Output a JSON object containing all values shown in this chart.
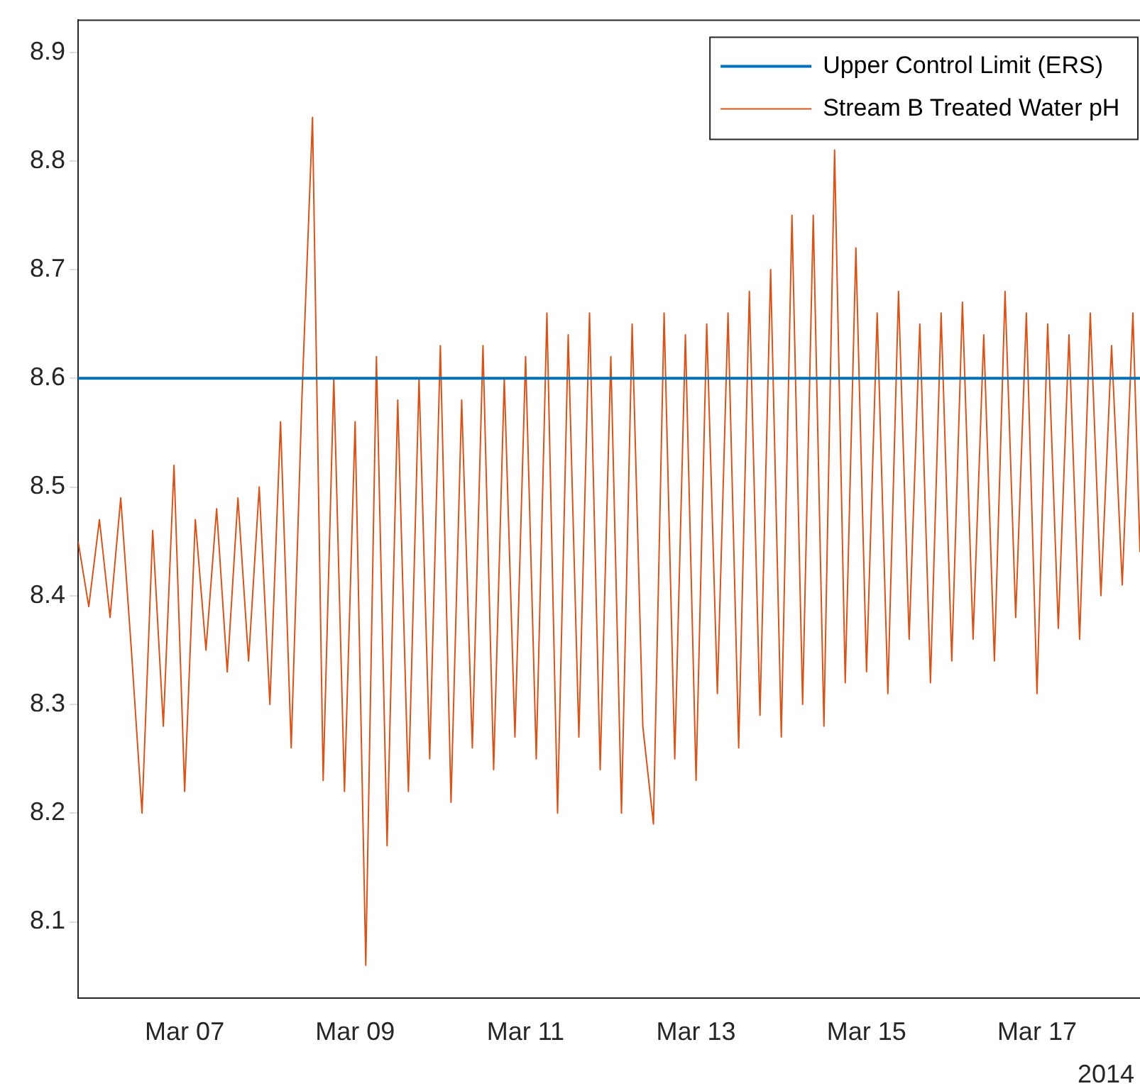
{
  "chart_data": {
    "type": "line",
    "series": [
      {
        "name": "Upper Control Limit (ERS)",
        "color": "#0072bd",
        "x": [
          "2014-03-05T18:00",
          "2014-03-18T05:00"
        ],
        "values": [
          8.6,
          8.6
        ]
      },
      {
        "name": "Stream B Treated Water pH",
        "color": "#d95319",
        "x": [
          "2014-03-05T18:00",
          "2014-03-05T21:00",
          "2014-03-06T00:00",
          "2014-03-06T03:00",
          "2014-03-06T06:00",
          "2014-03-06T09:00",
          "2014-03-06T12:00",
          "2014-03-06T15:00",
          "2014-03-06T18:00",
          "2014-03-06T21:00",
          "2014-03-07T00:00",
          "2014-03-07T03:00",
          "2014-03-07T06:00",
          "2014-03-07T09:00",
          "2014-03-07T12:00",
          "2014-03-07T15:00",
          "2014-03-07T18:00",
          "2014-03-07T21:00",
          "2014-03-08T00:00",
          "2014-03-08T03:00",
          "2014-03-08T06:00",
          "2014-03-08T09:00",
          "2014-03-08T12:00",
          "2014-03-08T15:00",
          "2014-03-08T18:00",
          "2014-03-08T21:00",
          "2014-03-09T00:00",
          "2014-03-09T03:00",
          "2014-03-09T06:00",
          "2014-03-09T09:00",
          "2014-03-09T12:00",
          "2014-03-09T15:00",
          "2014-03-09T18:00",
          "2014-03-09T21:00",
          "2014-03-10T00:00",
          "2014-03-10T03:00",
          "2014-03-10T06:00",
          "2014-03-10T09:00",
          "2014-03-10T12:00",
          "2014-03-10T15:00",
          "2014-03-10T18:00",
          "2014-03-10T21:00",
          "2014-03-11T00:00",
          "2014-03-11T03:00",
          "2014-03-11T06:00",
          "2014-03-11T09:00",
          "2014-03-11T12:00",
          "2014-03-11T15:00",
          "2014-03-11T18:00",
          "2014-03-11T21:00",
          "2014-03-12T00:00",
          "2014-03-12T03:00",
          "2014-03-12T06:00",
          "2014-03-12T09:00",
          "2014-03-12T12:00",
          "2014-03-12T15:00",
          "2014-03-12T18:00",
          "2014-03-12T21:00",
          "2014-03-13T00:00",
          "2014-03-13T03:00",
          "2014-03-13T06:00",
          "2014-03-13T09:00",
          "2014-03-13T12:00",
          "2014-03-13T15:00",
          "2014-03-13T18:00",
          "2014-03-13T21:00",
          "2014-03-14T00:00",
          "2014-03-14T03:00",
          "2014-03-14T06:00",
          "2014-03-14T09:00",
          "2014-03-14T12:00",
          "2014-03-14T15:00",
          "2014-03-14T18:00",
          "2014-03-14T21:00",
          "2014-03-15T00:00",
          "2014-03-15T03:00",
          "2014-03-15T06:00",
          "2014-03-15T09:00",
          "2014-03-15T12:00",
          "2014-03-15T15:00",
          "2014-03-15T18:00",
          "2014-03-15T21:00",
          "2014-03-16T00:00",
          "2014-03-16T03:00",
          "2014-03-16T06:00",
          "2014-03-16T09:00",
          "2014-03-16T12:00",
          "2014-03-16T15:00",
          "2014-03-16T18:00",
          "2014-03-16T21:00",
          "2014-03-17T00:00",
          "2014-03-17T03:00",
          "2014-03-17T06:00",
          "2014-03-17T09:00",
          "2014-03-17T12:00",
          "2014-03-17T15:00",
          "2014-03-17T18:00",
          "2014-03-17T21:00",
          "2014-03-18T00:00",
          "2014-03-18T03:00",
          "2014-03-18T05:00"
        ],
        "values": [
          8.45,
          8.39,
          8.47,
          8.38,
          8.49,
          8.35,
          8.2,
          8.46,
          8.28,
          8.52,
          8.22,
          8.47,
          8.35,
          8.48,
          8.33,
          8.49,
          8.34,
          8.5,
          8.3,
          8.56,
          8.26,
          8.58,
          8.84,
          8.23,
          8.6,
          8.22,
          8.56,
          8.06,
          8.62,
          8.17,
          8.58,
          8.22,
          8.6,
          8.25,
          8.63,
          8.21,
          8.58,
          8.26,
          8.63,
          8.24,
          8.6,
          8.27,
          8.62,
          8.25,
          8.66,
          8.2,
          8.64,
          8.27,
          8.66,
          8.24,
          8.62,
          8.2,
          8.65,
          8.28,
          8.19,
          8.66,
          8.25,
          8.64,
          8.23,
          8.65,
          8.31,
          8.66,
          8.26,
          8.68,
          8.29,
          8.7,
          8.27,
          8.75,
          8.3,
          8.75,
          8.28,
          8.81,
          8.32,
          8.72,
          8.33,
          8.66,
          8.31,
          8.68,
          8.36,
          8.65,
          8.32,
          8.66,
          8.34,
          8.67,
          8.36,
          8.64,
          8.34,
          8.68,
          8.38,
          8.66,
          8.31,
          8.65,
          8.37,
          8.64,
          8.36,
          8.66,
          8.4,
          8.63,
          8.41,
          8.66,
          8.44
        ]
      }
    ],
    "xlim": [
      "2014-03-05T18:00",
      "2014-03-18T05:00"
    ],
    "xticks": [
      {
        "value": "2014-03-07",
        "label": "Mar 07"
      },
      {
        "value": "2014-03-09",
        "label": "Mar 09"
      },
      {
        "value": "2014-03-11",
        "label": "Mar 11"
      },
      {
        "value": "2014-03-13",
        "label": "Mar 13"
      },
      {
        "value": "2014-03-15",
        "label": "Mar 15"
      },
      {
        "value": "2014-03-17",
        "label": "Mar 17"
      }
    ],
    "ylim": [
      8.03,
      8.93
    ],
    "yticks": [
      8.1,
      8.2,
      8.3,
      8.4,
      8.5,
      8.6,
      8.7,
      8.8,
      8.9
    ],
    "annotations": [
      "2014"
    ],
    "legend": "top right",
    "grid": false,
    "marker": "none",
    "line_style": "solid"
  }
}
